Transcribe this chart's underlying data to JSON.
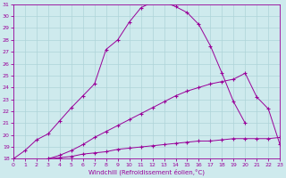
{
  "xlabel": "Windchill (Refroidissement éolien,°C)",
  "bg_color": "#ceeaed",
  "grid_color": "#aed4d8",
  "line_color": "#990099",
  "line1_x": [
    0,
    1,
    2,
    3,
    4,
    5,
    6,
    7,
    8,
    9,
    10,
    11,
    12,
    13,
    14,
    15,
    16,
    17,
    18,
    19,
    20,
    21,
    22,
    23
  ],
  "line1_y": [
    18.0,
    18.7,
    19.6,
    20.1,
    21.2,
    22.3,
    23.3,
    24.3,
    27.2,
    28.0,
    29.5,
    30.7,
    31.2,
    31.2,
    30.8,
    30.3,
    29.3,
    27.5,
    25.2,
    22.8,
    21.0,
    null,
    null,
    null
  ],
  "line2_x": [
    0,
    3,
    4,
    5,
    6,
    7,
    8,
    9,
    10,
    11,
    12,
    13,
    14,
    15,
    16,
    17,
    18,
    19,
    20,
    21,
    22,
    23
  ],
  "line2_y": [
    18.0,
    18.0,
    18.3,
    18.7,
    19.2,
    19.8,
    20.3,
    20.8,
    21.3,
    21.8,
    22.3,
    22.8,
    23.3,
    23.7,
    24.0,
    24.3,
    24.5,
    24.7,
    25.2,
    23.2,
    22.2,
    19.2
  ],
  "line3_x": [
    0,
    3,
    4,
    5,
    6,
    7,
    8,
    9,
    10,
    11,
    12,
    13,
    14,
    15,
    16,
    17,
    18,
    19,
    20,
    21,
    22,
    23
  ],
  "line3_y": [
    18.0,
    18.0,
    18.1,
    18.2,
    18.4,
    18.5,
    18.6,
    18.8,
    18.9,
    19.0,
    19.1,
    19.2,
    19.3,
    19.4,
    19.5,
    19.5,
    19.6,
    19.7,
    19.7,
    19.7,
    19.7,
    19.8
  ],
  "ylim": [
    18,
    31
  ],
  "xlim": [
    0,
    23
  ],
  "yticks": [
    18,
    19,
    20,
    21,
    22,
    23,
    24,
    25,
    26,
    27,
    28,
    29,
    30,
    31
  ],
  "xticks": [
    0,
    1,
    2,
    3,
    4,
    5,
    6,
    7,
    8,
    9,
    10,
    11,
    12,
    13,
    14,
    15,
    16,
    17,
    18,
    19,
    20,
    21,
    22,
    23
  ]
}
